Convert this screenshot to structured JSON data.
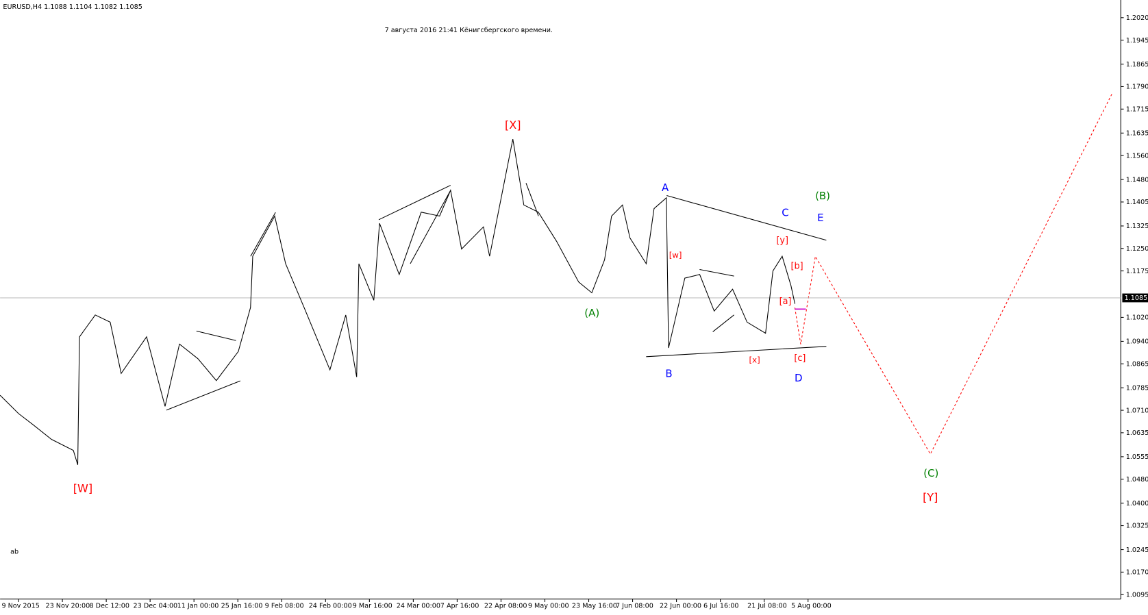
{
  "chart_data": {
    "type": "line",
    "title": "EURUSD,H4  1.1088 1.1104 1.1082 1.1085",
    "subtitle": "7 августа 2016 21:41 Кёнигсбергского времени.",
    "corner_label": "ab",
    "current_price": 1.1085,
    "x": [
      -0.42,
      0,
      0.33,
      0.75,
      1.25,
      1.35,
      1.39,
      1.75,
      2.09,
      2.34,
      2.92,
      3.34,
      3.67,
      4.09,
      4.51,
      5.01,
      5.29,
      5.34,
      5.84,
      6.09,
      6.51,
      7.1,
      7.46,
      7.71,
      7.76,
      8.1,
      8.23,
      8.68,
      9.18,
      9.6,
      9.85,
      10.1,
      10.6,
      10.74,
      11.27,
      11.52,
      11.85,
      12.27,
      12.77,
      13.07,
      13.36,
      13.52,
      13.77,
      13.94,
      14.31,
      14.49,
      14.77,
      14.82,
      15.19,
      15.53,
      15.86,
      16.28,
      16.61,
      17.03,
      17.2,
      17.41,
      17.61,
      17.7
    ],
    "series": [
      {
        "name": "EURUSD",
        "color": "#000000",
        "values": [
          1.076,
          1.0699,
          1.0662,
          1.0613,
          1.0576,
          1.0528,
          1.0955,
          1.1028,
          1.1004,
          1.0833,
          1.0955,
          1.0723,
          1.0931,
          1.0882,
          1.0809,
          1.0906,
          1.1053,
          1.1224,
          1.1358,
          1.1199,
          1.1053,
          1.0845,
          1.1028,
          1.0821,
          1.1199,
          1.1077,
          1.1334,
          1.1163,
          1.1371,
          1.1358,
          1.1444,
          1.1248,
          1.1322,
          1.1224,
          1.1615,
          1.1395,
          1.1371,
          1.1273,
          1.1138,
          1.1102,
          1.1212,
          1.1358,
          1.1395,
          1.1285,
          1.1199,
          1.1383,
          1.1419,
          1.0918,
          1.1151,
          1.1163,
          1.1041,
          1.1114,
          1.1004,
          1.0967,
          1.1175,
          1.1224,
          1.1126,
          1.1065
        ]
      }
    ],
    "xlim": [
      -0.42,
      25.13
    ],
    "xticks": [
      {
        "value": 0,
        "label": "9 Nov 2015"
      },
      {
        "value": 1,
        "label": "23 Nov 20:00"
      },
      {
        "value": 2,
        "label": "8 Dec 12:00"
      },
      {
        "value": 3,
        "label": "23 Dec 04:00"
      },
      {
        "value": 4,
        "label": "11 Jan 00:00"
      },
      {
        "value": 5,
        "label": "25 Jan 16:00"
      },
      {
        "value": 6,
        "label": "9 Feb 08:00"
      },
      {
        "value": 7,
        "label": "24 Feb 00:00"
      },
      {
        "value": 8,
        "label": "9 Mar 16:00"
      },
      {
        "value": 9,
        "label": "24 Mar 00:00"
      },
      {
        "value": 10,
        "label": "7 Apr 16:00"
      },
      {
        "value": 11,
        "label": "22 Apr 08:00"
      },
      {
        "value": 12,
        "label": "9 May 00:00"
      },
      {
        "value": 13,
        "label": "23 May 16:00"
      },
      {
        "value": 14,
        "label": "7 Jun 08:00"
      },
      {
        "value": 15,
        "label": "22 Jun 00:00"
      },
      {
        "value": 16,
        "label": "6 Jul 16:00"
      },
      {
        "value": 17,
        "label": "21 Jul 08:00"
      },
      {
        "value": 18,
        "label": "5 Aug 00:00"
      }
    ],
    "ylim": [
      1.008,
      1.2079
    ],
    "yticks": [
      {
        "value": 1.202,
        "label": "1.2020"
      },
      {
        "value": 1.1945,
        "label": "1.1945"
      },
      {
        "value": 1.1865,
        "label": "1.1865"
      },
      {
        "value": 1.179,
        "label": "1.1790"
      },
      {
        "value": 1.1715,
        "label": "1.1715"
      },
      {
        "value": 1.1635,
        "label": "1.1635"
      },
      {
        "value": 1.156,
        "label": "1.1560"
      },
      {
        "value": 1.148,
        "label": "1.1480"
      },
      {
        "value": 1.1405,
        "label": "1.1405"
      },
      {
        "value": 1.1325,
        "label": "1.1325"
      },
      {
        "value": 1.125,
        "label": "1.1250"
      },
      {
        "value": 1.1175,
        "label": "1.1175"
      },
      {
        "value": 1.102,
        "label": "1.1020"
      },
      {
        "value": 1.094,
        "label": "1.0940"
      },
      {
        "value": 1.0865,
        "label": "1.0865"
      },
      {
        "value": 1.0785,
        "label": "1.0785"
      },
      {
        "value": 1.071,
        "label": "1.0710"
      },
      {
        "value": 1.0635,
        "label": "1.0635"
      },
      {
        "value": 1.0555,
        "label": "1.0555"
      },
      {
        "value": 1.048,
        "label": "1.0480"
      },
      {
        "value": 1.04,
        "label": "1.0400"
      },
      {
        "value": 1.0325,
        "label": "1.0325"
      },
      {
        "value": 1.0245,
        "label": "1.0245"
      },
      {
        "value": 1.017,
        "label": "1.0170"
      },
      {
        "value": 1.0095,
        "label": "1.0095"
      }
    ],
    "annotations": [
      {
        "text": "[W]",
        "color": "#ff0000"
      },
      {
        "text": "[X]",
        "color": "#ff0000"
      },
      {
        "text": "(A)",
        "color": "#008000"
      },
      {
        "text": "A",
        "color": "#0000ff"
      },
      {
        "text": "B",
        "color": "#0000ff"
      },
      {
        "text": "C",
        "color": "#0000ff"
      },
      {
        "text": "D",
        "color": "#0000ff"
      },
      {
        "text": "E",
        "color": "#0000ff"
      },
      {
        "text": "(B)",
        "color": "#008000"
      },
      {
        "text": "[w]",
        "color": "#ff0000"
      },
      {
        "text": "[x]",
        "color": "#ff0000"
      },
      {
        "text": "[y]",
        "color": "#ff0000"
      },
      {
        "text": "[b]",
        "color": "#ff0000"
      },
      {
        "text": "[a]",
        "color": "#ff0000"
      },
      {
        "text": "[c]",
        "color": "#ff0000"
      },
      {
        "text": "(C)",
        "color": "#008000"
      },
      {
        "text": "[Y]",
        "color": "#ff0000"
      }
    ]
  }
}
